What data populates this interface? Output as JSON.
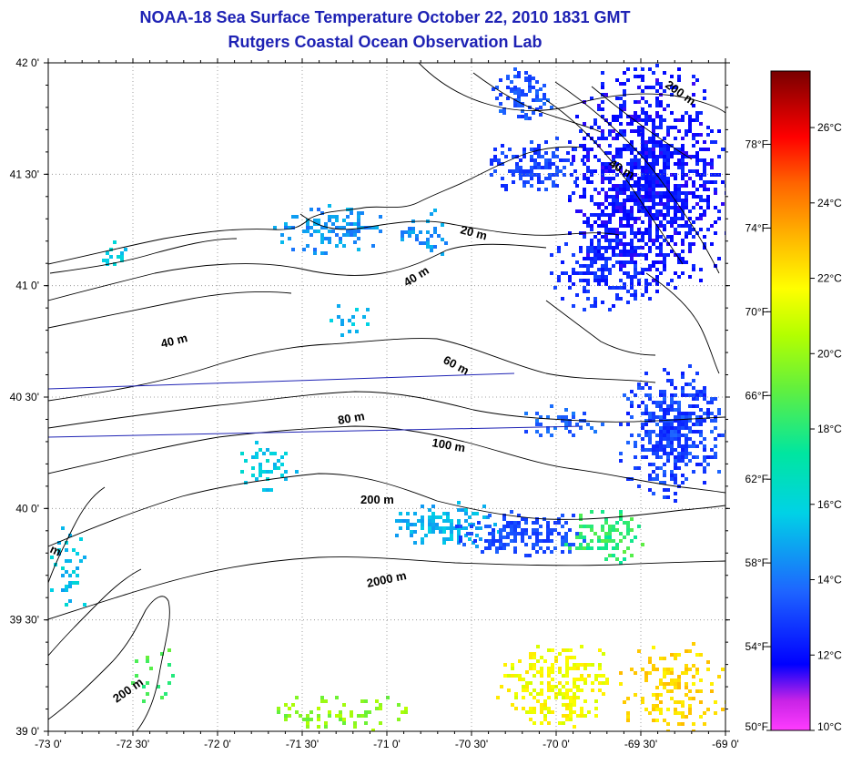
{
  "title": "NOAA-18 Sea Surface Temperature October 22, 2010 1831 GMT",
  "subtitle": "Rutgers Coastal Ocean Observation Lab",
  "map": {
    "lon_range": [
      -73,
      -69
    ],
    "lat_range": [
      39,
      42
    ],
    "lon_ticks": [
      "-73 0'",
      "-72 30'",
      "-72 0'",
      "-71 30'",
      "-71 0'",
      "-70 30'",
      "-70 0'",
      "-69 30'",
      "-69 0'"
    ],
    "lat_ticks": [
      "42 0'",
      "41 30'",
      "41 0'",
      "40 30'",
      "40 0'",
      "39 30'",
      "39 0'"
    ],
    "grid": true,
    "depth_contour_labels": [
      "200 m",
      "40 m",
      "20 m",
      "40 m",
      "40 m",
      "60 m",
      "80 m",
      "100 m",
      "200 m",
      "2000 m",
      "200 m",
      "m"
    ]
  },
  "colorbar": {
    "celsius_ticks": [
      "26°C",
      "24°C",
      "22°C",
      "20°C",
      "18°C",
      "16°C",
      "14°C",
      "12°C",
      "10°C"
    ],
    "fahrenheit_ticks": [
      "78°F",
      "74°F",
      "70°F",
      "66°F",
      "62°F",
      "58°F",
      "54°F",
      "50°F"
    ],
    "range_c": [
      10,
      27.5
    ],
    "colors": [
      "#ff3cff",
      "#c823e6",
      "#0000ff",
      "#1e64ff",
      "#00d2e6",
      "#00e6a0",
      "#b4ff00",
      "#ffff00",
      "#ffb400",
      "#ff6400",
      "#ff0000",
      "#b40000",
      "#780000"
    ]
  }
}
